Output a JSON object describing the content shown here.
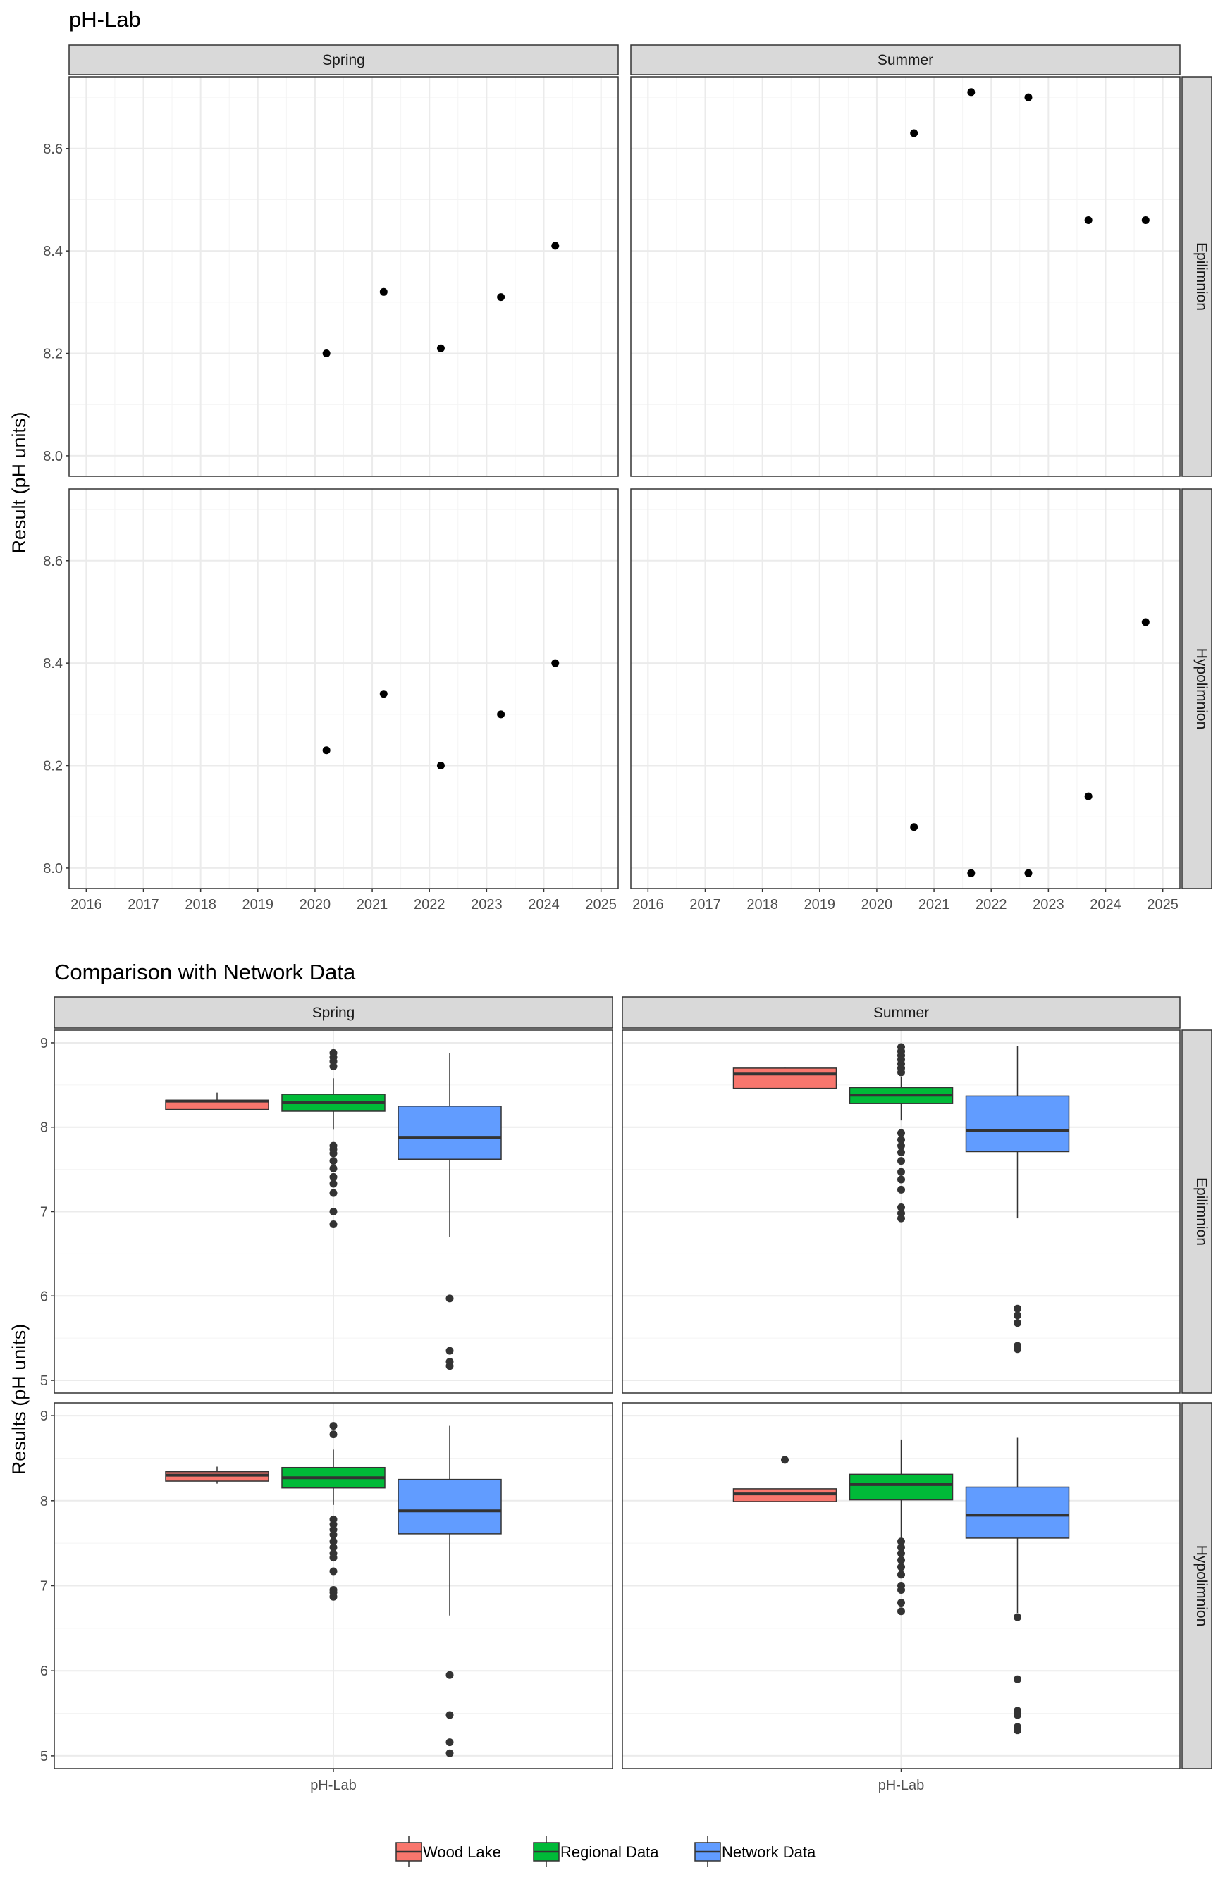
{
  "chart_data": [
    {
      "type": "scatter",
      "title": "pH-Lab",
      "ylabel": "Result (pH units)",
      "xlabel": "",
      "xlim": [
        2015.7,
        2025.3
      ],
      "ylim": [
        7.96,
        8.74
      ],
      "x_ticks": [
        "2016",
        "2017",
        "2018",
        "2019",
        "2020",
        "2021",
        "2022",
        "2023",
        "2024",
        "2025"
      ],
      "y_ticks": [
        "8.0",
        "8.2",
        "8.4",
        "8.6"
      ],
      "col_strips": [
        "Spring",
        "Summer"
      ],
      "row_strips": [
        "Epilimnion",
        "Hypolimnion"
      ],
      "grid": true,
      "panels": [
        {
          "season": "Spring",
          "layer": "Epilimnion",
          "points": [
            [
              2020.2,
              8.2
            ],
            [
              2021.2,
              8.32
            ],
            [
              2022.2,
              8.21
            ],
            [
              2023.25,
              8.31
            ],
            [
              2024.2,
              8.41
            ]
          ]
        },
        {
          "season": "Summer",
          "layer": "Epilimnion",
          "points": [
            [
              2020.65,
              8.63
            ],
            [
              2021.65,
              8.71
            ],
            [
              2022.65,
              8.7
            ],
            [
              2023.7,
              8.46
            ],
            [
              2024.7,
              8.46
            ]
          ]
        },
        {
          "season": "Spring",
          "layer": "Hypolimnion",
          "points": [
            [
              2020.2,
              8.23
            ],
            [
              2021.2,
              8.34
            ],
            [
              2022.2,
              8.2
            ],
            [
              2023.25,
              8.3
            ],
            [
              2024.2,
              8.4
            ]
          ]
        },
        {
          "season": "Summer",
          "layer": "Hypolimnion",
          "points": [
            [
              2020.65,
              8.08
            ],
            [
              2021.65,
              7.99
            ],
            [
              2022.65,
              7.99
            ],
            [
              2023.7,
              8.14
            ],
            [
              2024.7,
              8.48
            ]
          ]
        }
      ]
    },
    {
      "type": "box",
      "title": "Comparison with Network Data",
      "ylabel": "Results (pH units)",
      "xlabel": "",
      "category": "pH-Lab",
      "ylim": [
        4.85,
        9.15
      ],
      "y_ticks": [
        "5",
        "6",
        "7",
        "8",
        "9"
      ],
      "col_strips": [
        "Spring",
        "Summer"
      ],
      "row_strips": [
        "Epilimnion",
        "Hypolimnion"
      ],
      "grid": true,
      "legend": {
        "position": "bottom",
        "entries": [
          {
            "name": "Wood Lake",
            "color": "#F8766D"
          },
          {
            "name": "Regional Data",
            "color": "#00BA38"
          },
          {
            "name": "Network Data",
            "color": "#619CFF"
          }
        ]
      },
      "panels": [
        {
          "season": "Spring",
          "layer": "Epilimnion",
          "boxes": [
            {
              "group": "Wood Lake",
              "low": 8.2,
              "q1": 8.21,
              "median": 8.31,
              "q3": 8.32,
              "high": 8.41,
              "outliers": []
            },
            {
              "group": "Regional Data",
              "low": 7.97,
              "q1": 8.19,
              "median": 8.29,
              "q3": 8.39,
              "high": 8.58,
              "outliers": [
                8.72,
                8.78,
                8.83,
                8.88,
                7.78,
                7.74,
                7.69,
                7.6,
                7.51,
                7.41,
                7.33,
                7.22,
                7.0,
                6.85
              ]
            },
            {
              "group": "Network Data",
              "low": 6.7,
              "q1": 7.62,
              "median": 7.88,
              "q3": 8.25,
              "high": 8.88,
              "outliers": [
                5.97,
                5.35,
                5.22,
                5.17
              ]
            }
          ]
        },
        {
          "season": "Summer",
          "layer": "Epilimnion",
          "boxes": [
            {
              "group": "Wood Lake",
              "low": 8.46,
              "q1": 8.46,
              "median": 8.63,
              "q3": 8.7,
              "high": 8.71,
              "outliers": []
            },
            {
              "group": "Regional Data",
              "low": 8.08,
              "q1": 8.28,
              "median": 8.38,
              "q3": 8.47,
              "high": 8.6,
              "outliers": [
                8.65,
                8.7,
                8.75,
                8.8,
                8.85,
                8.9,
                8.95,
                7.93,
                7.85,
                7.78,
                7.7,
                7.6,
                7.47,
                7.38,
                7.26,
                7.05,
                6.98,
                6.92
              ]
            },
            {
              "group": "Network Data",
              "low": 6.92,
              "q1": 7.71,
              "median": 7.96,
              "q3": 8.37,
              "high": 8.96,
              "outliers": [
                5.85,
                5.77,
                5.68,
                5.41,
                5.37
              ]
            }
          ]
        },
        {
          "season": "Spring",
          "layer": "Hypolimnion",
          "boxes": [
            {
              "group": "Wood Lake",
              "low": 8.2,
              "q1": 8.23,
              "median": 8.3,
              "q3": 8.34,
              "high": 8.4,
              "outliers": []
            },
            {
              "group": "Regional Data",
              "low": 7.95,
              "q1": 8.15,
              "median": 8.27,
              "q3": 8.39,
              "high": 8.6,
              "outliers": [
                8.78,
                8.88,
                7.78,
                7.72,
                7.66,
                7.6,
                7.52,
                7.45,
                7.38,
                7.33,
                7.17,
                6.95,
                6.92,
                6.87
              ]
            },
            {
              "group": "Network Data",
              "low": 6.65,
              "q1": 7.61,
              "median": 7.88,
              "q3": 8.25,
              "high": 8.88,
              "outliers": [
                5.95,
                5.48,
                5.16,
                5.03
              ]
            }
          ]
        },
        {
          "season": "Summer",
          "layer": "Hypolimnion",
          "boxes": [
            {
              "group": "Wood Lake",
              "low": 7.99,
              "q1": 7.99,
              "median": 8.08,
              "q3": 8.14,
              "high": 8.14,
              "outliers": [
                8.48
              ]
            },
            {
              "group": "Regional Data",
              "low": 7.55,
              "q1": 8.01,
              "median": 8.19,
              "q3": 8.31,
              "high": 8.72,
              "outliers": [
                7.52,
                7.45,
                7.38,
                7.3,
                7.22,
                7.13,
                7.0,
                6.95,
                6.8,
                6.7
              ]
            },
            {
              "group": "Network Data",
              "low": 6.68,
              "q1": 7.56,
              "median": 7.83,
              "q3": 8.16,
              "high": 8.74,
              "outliers": [
                6.63,
                5.9,
                5.53,
                5.48,
                5.34,
                5.3
              ]
            }
          ]
        }
      ]
    }
  ]
}
